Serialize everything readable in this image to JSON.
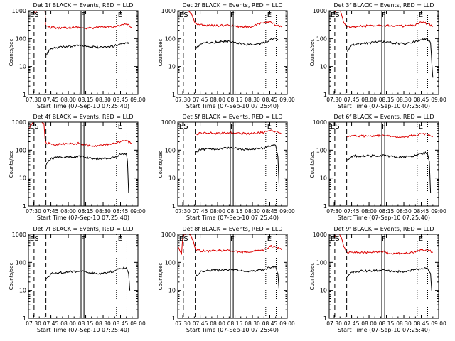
{
  "figure": {
    "xlabel": "Start Time (07-Sep-10 07:25:40)",
    "ylabel": "Counts/sec",
    "x_ticks": [
      "07:30",
      "07:45",
      "08:00",
      "08:15",
      "08:30",
      "08:45",
      "09:00"
    ],
    "y_ticks": [
      "1",
      "10",
      "100",
      "1000"
    ],
    "marker_labels": [
      "ES",
      "F",
      "E"
    ],
    "colors": {
      "events": "#000000",
      "lld": "#dd0000",
      "axes": "#000000",
      "background": "#ffffff"
    }
  },
  "chart_data": [
    {
      "type": "line",
      "title": "Det 1f BLACK = Events, RED = LLD",
      "x_range": [
        "07:25:40",
        "09:00:00"
      ],
      "y_scale": "log",
      "ylim": [
        1,
        1000
      ],
      "x_ticks": [
        "07:30",
        "07:45",
        "08:00",
        "08:15",
        "08:30",
        "08:45",
        "09:00"
      ],
      "markers": {
        "dashed": [
          "07:30:30",
          "07:40:45"
        ],
        "solid": [
          "08:11:00",
          "08:13:30"
        ],
        "dotted": [
          "08:41:30",
          "08:50:30"
        ]
      },
      "series": [
        {
          "color": "#dd0000",
          "x": [
            "07:30",
            "07:35",
            "07:39",
            "07:40",
            "07:40:30",
            "07:43",
            "07:50",
            "08:00",
            "08:10",
            "08:15",
            "08:20",
            "08:30",
            "08:40",
            "08:50",
            "08:55"
          ],
          "y": [
            800,
            1100,
            1200,
            900,
            280,
            260,
            240,
            250,
            255,
            230,
            240,
            260,
            270,
            330,
            240
          ]
        },
        {
          "color": "#000000",
          "x": [
            "07:40:45",
            "07:45",
            "07:50",
            "08:00",
            "08:05",
            "08:10",
            "08:15",
            "08:20",
            "08:30",
            "08:40",
            "08:45",
            "08:50",
            "08:52"
          ],
          "y": [
            25,
            45,
            48,
            52,
            55,
            60,
            55,
            50,
            48,
            55,
            65,
            70,
            65
          ]
        }
      ]
    },
    {
      "type": "line",
      "title": "Det 2f BLACK = Events, RED = LLD",
      "x_range": [
        "07:25:40",
        "09:00:00"
      ],
      "y_scale": "log",
      "ylim": [
        1,
        1000
      ],
      "x_ticks": [
        "07:30",
        "07:45",
        "08:00",
        "08:15",
        "08:30",
        "08:45",
        "09:00"
      ],
      "markers": {
        "dashed": [
          "07:30:30",
          "07:40:45"
        ],
        "solid": [
          "08:11:00",
          "08:13:30"
        ],
        "dotted": [
          "08:41:30",
          "08:50:30"
        ]
      },
      "series": [
        {
          "color": "#dd0000",
          "x": [
            "07:34",
            "07:36",
            "07:38",
            "07:40",
            "07:41",
            "07:45",
            "07:50",
            "08:00",
            "08:10",
            "08:20",
            "08:30",
            "08:40",
            "08:45",
            "08:50",
            "08:55"
          ],
          "y": [
            1200,
            900,
            700,
            400,
            350,
            320,
            300,
            290,
            300,
            260,
            270,
            380,
            400,
            300,
            260
          ]
        },
        {
          "color": "#000000",
          "x": [
            "07:41",
            "07:45",
            "07:50",
            "08:00",
            "08:10",
            "08:15",
            "08:20",
            "08:30",
            "08:40",
            "08:45",
            "08:50",
            "08:52"
          ],
          "y": [
            40,
            65,
            70,
            75,
            80,
            75,
            65,
            60,
            70,
            90,
            100,
            95
          ]
        }
      ]
    },
    {
      "type": "line",
      "title": "Det 3f BLACK = Events, RED = LLD",
      "x_range": [
        "07:25:40",
        "09:00:00"
      ],
      "y_scale": "log",
      "ylim": [
        1,
        1000
      ],
      "x_ticks": [
        "07:30",
        "07:45",
        "08:00",
        "08:15",
        "08:30",
        "08:45",
        "09:00"
      ],
      "markers": {
        "dashed": [
          "07:30:30",
          "07:40:45"
        ],
        "solid": [
          "08:11:00",
          "08:13:30"
        ],
        "dotted": [
          "08:41:30",
          "08:50:30"
        ]
      },
      "series": [
        {
          "color": "#dd0000",
          "x": [
            "07:30",
            "07:34",
            "07:36",
            "07:38",
            "07:40",
            "07:41",
            "07:45",
            "07:50",
            "08:00",
            "08:10",
            "08:20",
            "08:30",
            "08:40",
            "08:45",
            "08:50",
            "08:55"
          ],
          "y": [
            900,
            1200,
            800,
            400,
            280,
            260,
            260,
            270,
            290,
            300,
            290,
            280,
            300,
            380,
            350,
            280
          ]
        },
        {
          "color": "#000000",
          "x": [
            "07:41",
            "07:45",
            "07:50",
            "08:00",
            "08:10",
            "08:15",
            "08:20",
            "08:30",
            "08:40",
            "08:45",
            "08:50",
            "08:53",
            "08:55"
          ],
          "y": [
            35,
            60,
            65,
            70,
            80,
            75,
            70,
            65,
            80,
            90,
            100,
            70,
            4
          ]
        }
      ]
    },
    {
      "type": "line",
      "title": "Det 4f BLACK = Events, RED = LLD",
      "x_range": [
        "07:25:40",
        "09:00:00"
      ],
      "y_scale": "log",
      "ylim": [
        1,
        1000
      ],
      "x_ticks": [
        "07:30",
        "07:45",
        "08:00",
        "08:15",
        "08:30",
        "08:45",
        "09:00"
      ],
      "markers": {
        "dashed": [
          "07:30:30",
          "07:40:45"
        ],
        "solid": [
          "08:11:00",
          "08:13:30"
        ],
        "dotted": [
          "08:41:30",
          "08:50:30"
        ]
      },
      "series": [
        {
          "color": "#dd0000",
          "x": [
            "07:26",
            "07:30",
            "07:35",
            "07:39",
            "07:40",
            "07:41",
            "07:45",
            "07:50",
            "08:00",
            "08:10",
            "08:20",
            "08:30",
            "08:40",
            "08:45",
            "08:50",
            "08:55"
          ],
          "y": [
            600,
            1100,
            1200,
            900,
            250,
            180,
            170,
            160,
            170,
            175,
            140,
            150,
            170,
            200,
            220,
            170
          ]
        },
        {
          "color": "#000000",
          "x": [
            "07:41",
            "07:45",
            "07:50",
            "08:00",
            "08:10",
            "08:15",
            "08:20",
            "08:30",
            "08:40",
            "08:45",
            "08:50",
            "08:51",
            "08:52"
          ],
          "y": [
            30,
            50,
            55,
            55,
            60,
            55,
            50,
            50,
            55,
            70,
            75,
            40,
            3
          ]
        }
      ]
    },
    {
      "type": "line",
      "title": "Det 5f BLACK = Events, RED = LLD",
      "x_range": [
        "07:25:40",
        "09:00:00"
      ],
      "y_scale": "log",
      "ylim": [
        1,
        1000
      ],
      "x_ticks": [
        "07:30",
        "07:45",
        "08:00",
        "08:15",
        "08:30",
        "08:45",
        "09:00"
      ],
      "markers": {
        "dashed": [
          "07:30:30",
          "07:40:45"
        ],
        "solid": [
          "08:11:00",
          "08:13:30"
        ],
        "dotted": [
          "08:41:30",
          "08:50:30"
        ]
      },
      "series": [
        {
          "color": "#dd0000",
          "x": [
            "07:41",
            "07:45",
            "07:50",
            "08:00",
            "08:10",
            "08:20",
            "08:30",
            "08:40",
            "08:45",
            "08:50",
            "08:55"
          ],
          "y": [
            350,
            420,
            410,
            400,
            420,
            400,
            390,
            430,
            500,
            480,
            380
          ]
        },
        {
          "color": "#000000",
          "x": [
            "07:41",
            "07:45",
            "07:50",
            "08:00",
            "08:10",
            "08:15",
            "08:20",
            "08:30",
            "08:40",
            "08:45",
            "08:50",
            "08:52",
            "08:53"
          ],
          "y": [
            80,
            105,
            110,
            110,
            120,
            115,
            110,
            105,
            120,
            140,
            150,
            60,
            5
          ]
        }
      ]
    },
    {
      "type": "line",
      "title": "Det 6f BLACK = Events, RED = LLD",
      "x_range": [
        "07:25:40",
        "09:00:00"
      ],
      "y_scale": "log",
      "ylim": [
        1,
        1000
      ],
      "x_ticks": [
        "07:30",
        "07:45",
        "08:00",
        "08:15",
        "08:30",
        "08:45",
        "09:00"
      ],
      "markers": {
        "dashed": [
          "07:30:30",
          "07:40:45"
        ],
        "solid": [
          "08:11:00",
          "08:13:30"
        ],
        "dotted": [
          "08:41:30",
          "08:50:30"
        ]
      },
      "series": [
        {
          "color": "#dd0000",
          "x": [
            "07:41",
            "07:45",
            "07:50",
            "08:00",
            "08:10",
            "08:20",
            "08:30",
            "08:40",
            "08:45",
            "08:50",
            "08:55"
          ],
          "y": [
            300,
            330,
            320,
            320,
            330,
            310,
            300,
            340,
            380,
            380,
            300
          ]
        },
        {
          "color": "#000000",
          "x": [
            "07:41",
            "07:45",
            "07:50",
            "08:00",
            "08:10",
            "08:15",
            "08:20",
            "08:30",
            "08:40",
            "08:45",
            "08:50",
            "08:52",
            "08:53"
          ],
          "y": [
            45,
            60,
            62,
            62,
            65,
            62,
            58,
            55,
            65,
            75,
            80,
            40,
            3
          ]
        }
      ]
    },
    {
      "type": "line",
      "title": "Det 7f BLACK = Events, RED = LLD",
      "x_range": [
        "07:25:40",
        "09:00:00"
      ],
      "y_scale": "log",
      "ylim": [
        1,
        1000
      ],
      "x_ticks": [
        "07:30",
        "07:45",
        "08:00",
        "08:15",
        "08:30",
        "08:45",
        "09:00"
      ],
      "markers": {
        "dashed": [
          "07:30:30",
          "07:40:45"
        ],
        "solid": [
          "08:11:00",
          "08:13:30"
        ],
        "dotted": [
          "08:41:30",
          "08:50:30"
        ]
      },
      "series": [
        {
          "color": "#000000",
          "x": [
            "07:41",
            "07:45",
            "07:50",
            "08:00",
            "08:10",
            "08:15",
            "08:20",
            "08:30",
            "08:40",
            "08:45",
            "08:50",
            "08:52",
            "08:53"
          ],
          "y": [
            25,
            40,
            42,
            45,
            50,
            48,
            42,
            40,
            50,
            60,
            65,
            40,
            10
          ]
        }
      ]
    },
    {
      "type": "line",
      "title": "Det 8f BLACK = Events, RED = LLD",
      "x_range": [
        "07:25:40",
        "09:00:00"
      ],
      "y_scale": "log",
      "ylim": [
        1,
        1000
      ],
      "x_ticks": [
        "07:30",
        "07:45",
        "08:00",
        "08:15",
        "08:30",
        "08:45",
        "09:00"
      ],
      "markers": {
        "dashed": [
          "07:30:30",
          "07:40:45"
        ],
        "solid": [
          "08:11:00",
          "08:13:30"
        ],
        "dotted": [
          "08:41:30",
          "08:50:30"
        ]
      },
      "series": [
        {
          "color": "#dd0000",
          "x": [
            "07:26",
            "07:29",
            "07:30",
            "07:35",
            "07:39",
            "07:41",
            "07:45",
            "07:50",
            "08:00",
            "08:10",
            "08:20",
            "08:30",
            "08:40",
            "08:45",
            "08:50",
            "08:55"
          ],
          "y": [
            350,
            200,
            900,
            1200,
            600,
            280,
            260,
            250,
            260,
            270,
            230,
            240,
            280,
            380,
            350,
            280
          ]
        },
        {
          "color": "#000000",
          "x": [
            "07:41",
            "07:45",
            "07:50",
            "08:00",
            "08:10",
            "08:15",
            "08:20",
            "08:30",
            "08:40",
            "08:45",
            "08:50",
            "08:52",
            "08:53"
          ],
          "y": [
            30,
            45,
            50,
            52,
            55,
            55,
            50,
            48,
            55,
            65,
            70,
            40,
            10
          ]
        }
      ]
    },
    {
      "type": "line",
      "title": "Det 9f BLACK = Events, RED = LLD",
      "x_range": [
        "07:25:40",
        "09:00:00"
      ],
      "y_scale": "log",
      "ylim": [
        1,
        1000
      ],
      "x_ticks": [
        "07:30",
        "07:45",
        "08:00",
        "08:15",
        "08:30",
        "08:45",
        "09:00"
      ],
      "markers": {
        "dashed": [
          "07:30:30",
          "07:40:45"
        ],
        "solid": [
          "08:11:00",
          "08:13:30"
        ],
        "dotted": [
          "08:41:30",
          "08:50:30"
        ]
      },
      "series": [
        {
          "color": "#dd0000",
          "x": [
            "07:30",
            "07:34",
            "07:36",
            "07:38",
            "07:40",
            "07:41",
            "07:45",
            "07:50",
            "08:00",
            "08:10",
            "08:20",
            "08:30",
            "08:40",
            "08:45",
            "08:50",
            "08:55"
          ],
          "y": [
            800,
            1200,
            800,
            400,
            260,
            230,
            230,
            220,
            230,
            250,
            200,
            210,
            230,
            280,
            280,
            230
          ]
        },
        {
          "color": "#000000",
          "x": [
            "07:41",
            "07:45",
            "07:50",
            "08:00",
            "08:10",
            "08:15",
            "08:20",
            "08:30",
            "08:40",
            "08:45",
            "08:50",
            "08:53",
            "08:54"
          ],
          "y": [
            30,
            45,
            48,
            50,
            52,
            52,
            48,
            46,
            55,
            60,
            65,
            40,
            10
          ]
        }
      ]
    }
  ]
}
